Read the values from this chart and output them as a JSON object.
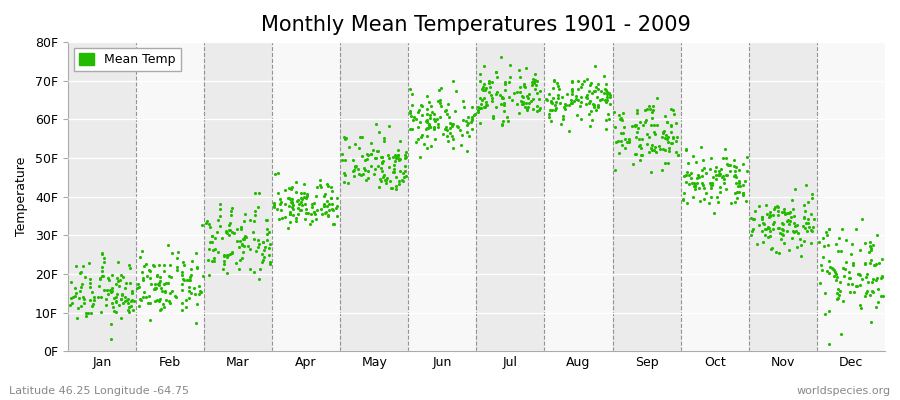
{
  "title": "Monthly Mean Temperatures 1901 - 2009",
  "ylabel": "Temperature",
  "xlabel_bottom_left": "Latitude 46.25 Longitude -64.75",
  "xlabel_bottom_right": "worldspecies.org",
  "legend_label": "Mean Temp",
  "dot_color": "#22bb00",
  "background_color": "#ffffff",
  "band_colors": [
    "#ebebeb",
    "#f8f8f8"
  ],
  "ylim": [
    0,
    80
  ],
  "ytick_labels": [
    "0F",
    "10F",
    "20F",
    "30F",
    "40F",
    "50F",
    "60F",
    "70F",
    "80F"
  ],
  "ytick_values": [
    0,
    10,
    20,
    30,
    40,
    50,
    60,
    70,
    80
  ],
  "months": [
    "Jan",
    "Feb",
    "Mar",
    "Apr",
    "May",
    "Jun",
    "Jul",
    "Aug",
    "Sep",
    "Oct",
    "Nov",
    "Dec"
  ],
  "month_means_F": [
    15,
    17,
    28,
    38,
    49,
    60,
    66,
    65,
    56,
    44,
    33,
    21
  ],
  "month_stds_F": [
    4,
    4,
    5,
    3,
    4,
    4,
    3,
    3,
    4,
    4,
    4,
    6
  ],
  "n_years": 109,
  "marker_size": 5,
  "title_fontsize": 15,
  "label_fontsize": 9,
  "tick_fontsize": 9
}
